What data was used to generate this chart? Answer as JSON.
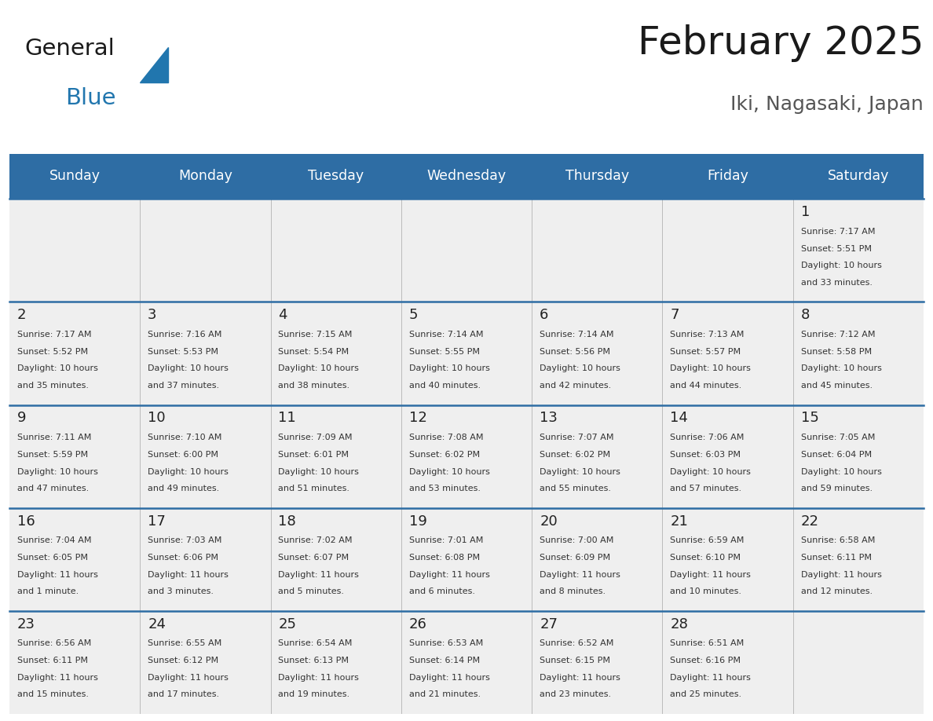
{
  "title": "February 2025",
  "subtitle": "Iki, Nagasaki, Japan",
  "header_bg": "#2E6DA4",
  "header_text_color": "#FFFFFF",
  "cell_bg": "#EFEFEF",
  "border_color": "#2E6DA4",
  "grid_color": "#BBBBBB",
  "day_headers": [
    "Sunday",
    "Monday",
    "Tuesday",
    "Wednesday",
    "Thursday",
    "Friday",
    "Saturday"
  ],
  "days": [
    {
      "day": 1,
      "col": 6,
      "row": 0,
      "sunrise": "7:17 AM",
      "sunset": "5:51 PM",
      "daylight_h": "10 hours",
      "daylight_m": "and 33 minutes."
    },
    {
      "day": 2,
      "col": 0,
      "row": 1,
      "sunrise": "7:17 AM",
      "sunset": "5:52 PM",
      "daylight_h": "10 hours",
      "daylight_m": "and 35 minutes."
    },
    {
      "day": 3,
      "col": 1,
      "row": 1,
      "sunrise": "7:16 AM",
      "sunset": "5:53 PM",
      "daylight_h": "10 hours",
      "daylight_m": "and 37 minutes."
    },
    {
      "day": 4,
      "col": 2,
      "row": 1,
      "sunrise": "7:15 AM",
      "sunset": "5:54 PM",
      "daylight_h": "10 hours",
      "daylight_m": "and 38 minutes."
    },
    {
      "day": 5,
      "col": 3,
      "row": 1,
      "sunrise": "7:14 AM",
      "sunset": "5:55 PM",
      "daylight_h": "10 hours",
      "daylight_m": "and 40 minutes."
    },
    {
      "day": 6,
      "col": 4,
      "row": 1,
      "sunrise": "7:14 AM",
      "sunset": "5:56 PM",
      "daylight_h": "10 hours",
      "daylight_m": "and 42 minutes."
    },
    {
      "day": 7,
      "col": 5,
      "row": 1,
      "sunrise": "7:13 AM",
      "sunset": "5:57 PM",
      "daylight_h": "10 hours",
      "daylight_m": "and 44 minutes."
    },
    {
      "day": 8,
      "col": 6,
      "row": 1,
      "sunrise": "7:12 AM",
      "sunset": "5:58 PM",
      "daylight_h": "10 hours",
      "daylight_m": "and 45 minutes."
    },
    {
      "day": 9,
      "col": 0,
      "row": 2,
      "sunrise": "7:11 AM",
      "sunset": "5:59 PM",
      "daylight_h": "10 hours",
      "daylight_m": "and 47 minutes."
    },
    {
      "day": 10,
      "col": 1,
      "row": 2,
      "sunrise": "7:10 AM",
      "sunset": "6:00 PM",
      "daylight_h": "10 hours",
      "daylight_m": "and 49 minutes."
    },
    {
      "day": 11,
      "col": 2,
      "row": 2,
      "sunrise": "7:09 AM",
      "sunset": "6:01 PM",
      "daylight_h": "10 hours",
      "daylight_m": "and 51 minutes."
    },
    {
      "day": 12,
      "col": 3,
      "row": 2,
      "sunrise": "7:08 AM",
      "sunset": "6:02 PM",
      "daylight_h": "10 hours",
      "daylight_m": "and 53 minutes."
    },
    {
      "day": 13,
      "col": 4,
      "row": 2,
      "sunrise": "7:07 AM",
      "sunset": "6:02 PM",
      "daylight_h": "10 hours",
      "daylight_m": "and 55 minutes."
    },
    {
      "day": 14,
      "col": 5,
      "row": 2,
      "sunrise": "7:06 AM",
      "sunset": "6:03 PM",
      "daylight_h": "10 hours",
      "daylight_m": "and 57 minutes."
    },
    {
      "day": 15,
      "col": 6,
      "row": 2,
      "sunrise": "7:05 AM",
      "sunset": "6:04 PM",
      "daylight_h": "10 hours",
      "daylight_m": "and 59 minutes."
    },
    {
      "day": 16,
      "col": 0,
      "row": 3,
      "sunrise": "7:04 AM",
      "sunset": "6:05 PM",
      "daylight_h": "11 hours",
      "daylight_m": "and 1 minute."
    },
    {
      "day": 17,
      "col": 1,
      "row": 3,
      "sunrise": "7:03 AM",
      "sunset": "6:06 PM",
      "daylight_h": "11 hours",
      "daylight_m": "and 3 minutes."
    },
    {
      "day": 18,
      "col": 2,
      "row": 3,
      "sunrise": "7:02 AM",
      "sunset": "6:07 PM",
      "daylight_h": "11 hours",
      "daylight_m": "and 5 minutes."
    },
    {
      "day": 19,
      "col": 3,
      "row": 3,
      "sunrise": "7:01 AM",
      "sunset": "6:08 PM",
      "daylight_h": "11 hours",
      "daylight_m": "and 6 minutes."
    },
    {
      "day": 20,
      "col": 4,
      "row": 3,
      "sunrise": "7:00 AM",
      "sunset": "6:09 PM",
      "daylight_h": "11 hours",
      "daylight_m": "and 8 minutes."
    },
    {
      "day": 21,
      "col": 5,
      "row": 3,
      "sunrise": "6:59 AM",
      "sunset": "6:10 PM",
      "daylight_h": "11 hours",
      "daylight_m": "and 10 minutes."
    },
    {
      "day": 22,
      "col": 6,
      "row": 3,
      "sunrise": "6:58 AM",
      "sunset": "6:11 PM",
      "daylight_h": "11 hours",
      "daylight_m": "and 12 minutes."
    },
    {
      "day": 23,
      "col": 0,
      "row": 4,
      "sunrise": "6:56 AM",
      "sunset": "6:11 PM",
      "daylight_h": "11 hours",
      "daylight_m": "and 15 minutes."
    },
    {
      "day": 24,
      "col": 1,
      "row": 4,
      "sunrise": "6:55 AM",
      "sunset": "6:12 PM",
      "daylight_h": "11 hours",
      "daylight_m": "and 17 minutes."
    },
    {
      "day": 25,
      "col": 2,
      "row": 4,
      "sunrise": "6:54 AM",
      "sunset": "6:13 PM",
      "daylight_h": "11 hours",
      "daylight_m": "and 19 minutes."
    },
    {
      "day": 26,
      "col": 3,
      "row": 4,
      "sunrise": "6:53 AM",
      "sunset": "6:14 PM",
      "daylight_h": "11 hours",
      "daylight_m": "and 21 minutes."
    },
    {
      "day": 27,
      "col": 4,
      "row": 4,
      "sunrise": "6:52 AM",
      "sunset": "6:15 PM",
      "daylight_h": "11 hours",
      "daylight_m": "and 23 minutes."
    },
    {
      "day": 28,
      "col": 5,
      "row": 4,
      "sunrise": "6:51 AM",
      "sunset": "6:16 PM",
      "daylight_h": "11 hours",
      "daylight_m": "and 25 minutes."
    }
  ],
  "num_rows": 5,
  "num_cols": 7,
  "logo_text1": "General",
  "logo_text2": "Blue",
  "logo_color1": "#1a1a1a",
  "logo_color2": "#2176AE",
  "logo_triangle_color": "#2176AE",
  "title_color": "#1a1a1a",
  "subtitle_color": "#555555"
}
